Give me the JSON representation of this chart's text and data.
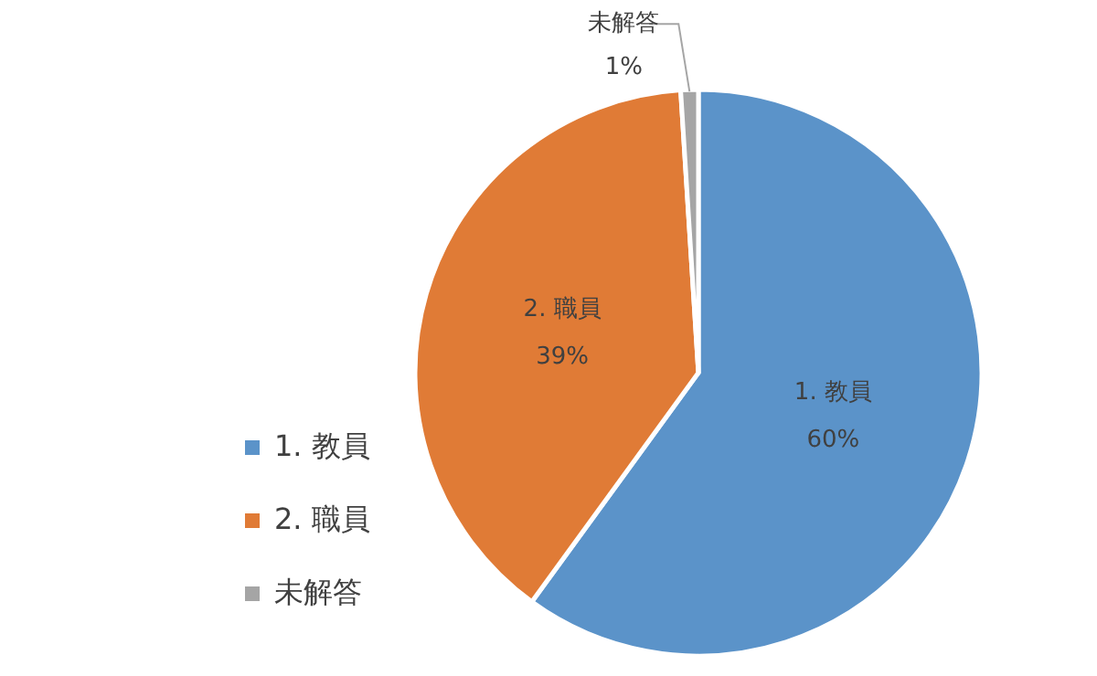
{
  "chart_data": {
    "type": "pie",
    "categories": [
      "1. 教員",
      "2. 職員",
      "未解答"
    ],
    "values": [
      60,
      39,
      1
    ],
    "colors": [
      "#5b93c9",
      "#e07b36",
      "#a5a5a5"
    ],
    "value_labels": [
      "60%",
      "39%",
      "1%"
    ],
    "legend": "left"
  }
}
